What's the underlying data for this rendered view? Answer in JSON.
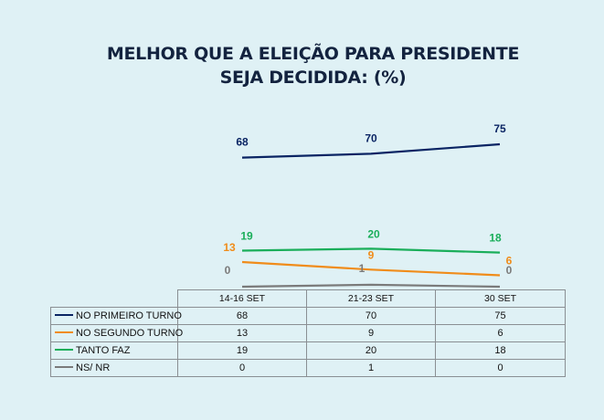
{
  "title_lines": [
    "MELHOR QUE A ELEIÇÃO PARA PRESIDENTE",
    "SEJA DECIDIDA:  (%)"
  ],
  "chart_data": {
    "type": "line",
    "title": "MELHOR QUE A ELEIÇÃO PARA PRESIDENTE SEJA DECIDIDA:  (%)",
    "categories": [
      "14-16 SET",
      "21-23 SET",
      "30 SET"
    ],
    "series": [
      {
        "name": "NO PRIMEIRO TURNO",
        "values": [
          68,
          70,
          75
        ],
        "color": "#0a2463"
      },
      {
        "name": "NO SEGUNDO TURNO",
        "values": [
          13,
          9,
          6
        ],
        "color": "#f08c1a"
      },
      {
        "name": "TANTO FAZ",
        "values": [
          19,
          20,
          18
        ],
        "color": "#1aae5a"
      },
      {
        "name": "NS/ NR",
        "values": [
          0,
          1,
          0
        ],
        "color": "#7a7a7a"
      }
    ],
    "ylim": [
      0,
      75
    ],
    "data_table": true,
    "grid": false
  }
}
